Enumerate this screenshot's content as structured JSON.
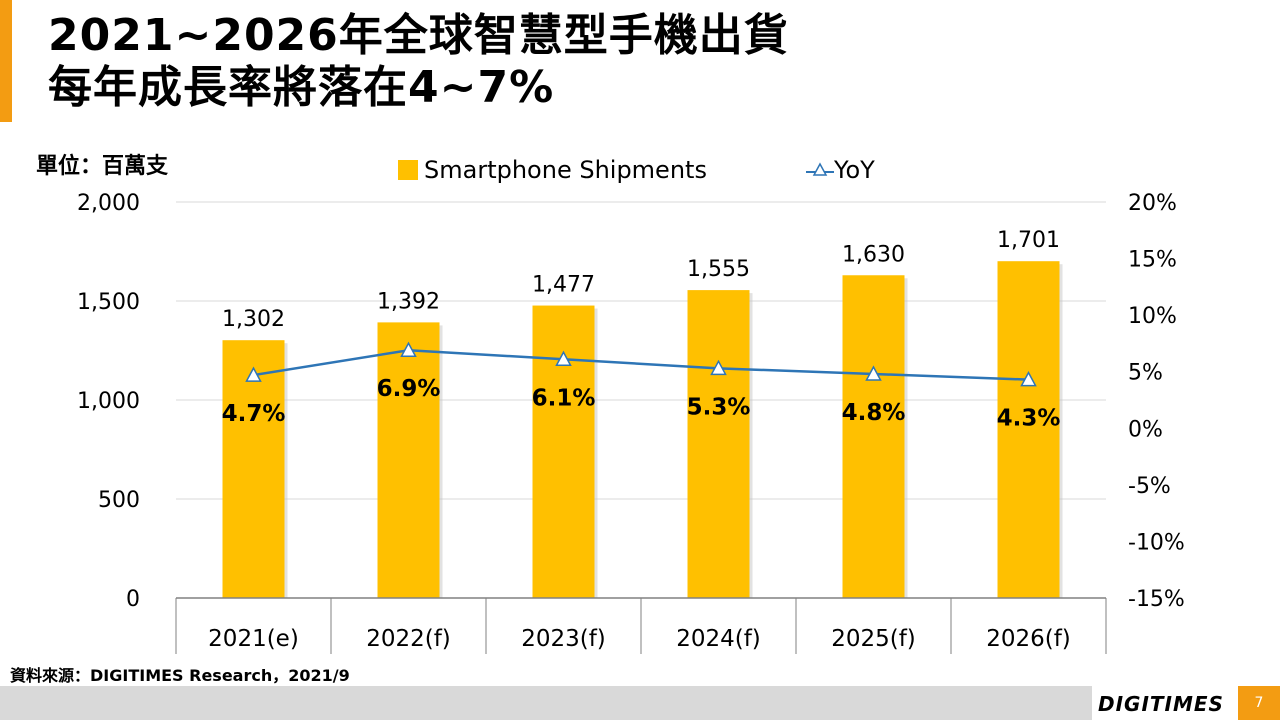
{
  "slide": {
    "title_line1": "2021~2026年全球智慧型手機出貨",
    "title_line2": "每年成長率將落在4~7%",
    "unit_label": "單位：百萬支",
    "source": "資料來源：DIGITIMES Research，2021/9",
    "logo": "DIGITIMES",
    "page_number": "7",
    "accent_color": "#f39c12"
  },
  "chart_data": {
    "type": "bar",
    "categories": [
      "2021(e)",
      "2022(f)",
      "2023(f)",
      "2024(f)",
      "2025(f)",
      "2026(f)"
    ],
    "series": [
      {
        "name": "Smartphone Shipments",
        "type": "bar",
        "axis": "left",
        "color": "#ffc000",
        "values": [
          1302,
          1392,
          1477,
          1555,
          1630,
          1701
        ],
        "labels": [
          "1,302",
          "1,392",
          "1,477",
          "1,555",
          "1,630",
          "1,701"
        ]
      },
      {
        "name": "YoY",
        "type": "line",
        "axis": "right",
        "color": "#2e75b6",
        "values": [
          4.7,
          6.9,
          6.1,
          5.3,
          4.8,
          4.3
        ],
        "labels": [
          "4.7%",
          "6.9%",
          "6.1%",
          "5.3%",
          "4.8%",
          "4.3%"
        ]
      }
    ],
    "y_left": {
      "range": [
        0,
        2000
      ],
      "ticks": [
        0,
        500,
        1000,
        1500,
        2000
      ],
      "tick_labels": [
        "0",
        "500",
        "1,000",
        "1,500",
        "2,000"
      ]
    },
    "y_right": {
      "range": [
        -15,
        20
      ],
      "ticks": [
        -15,
        -10,
        -5,
        0,
        5,
        10,
        15,
        20
      ],
      "tick_labels": [
        "-15%",
        "-10%",
        "-5%",
        "0%",
        "5%",
        "10%",
        "15%",
        "20%"
      ]
    },
    "grid": true,
    "legend_position": "top"
  }
}
